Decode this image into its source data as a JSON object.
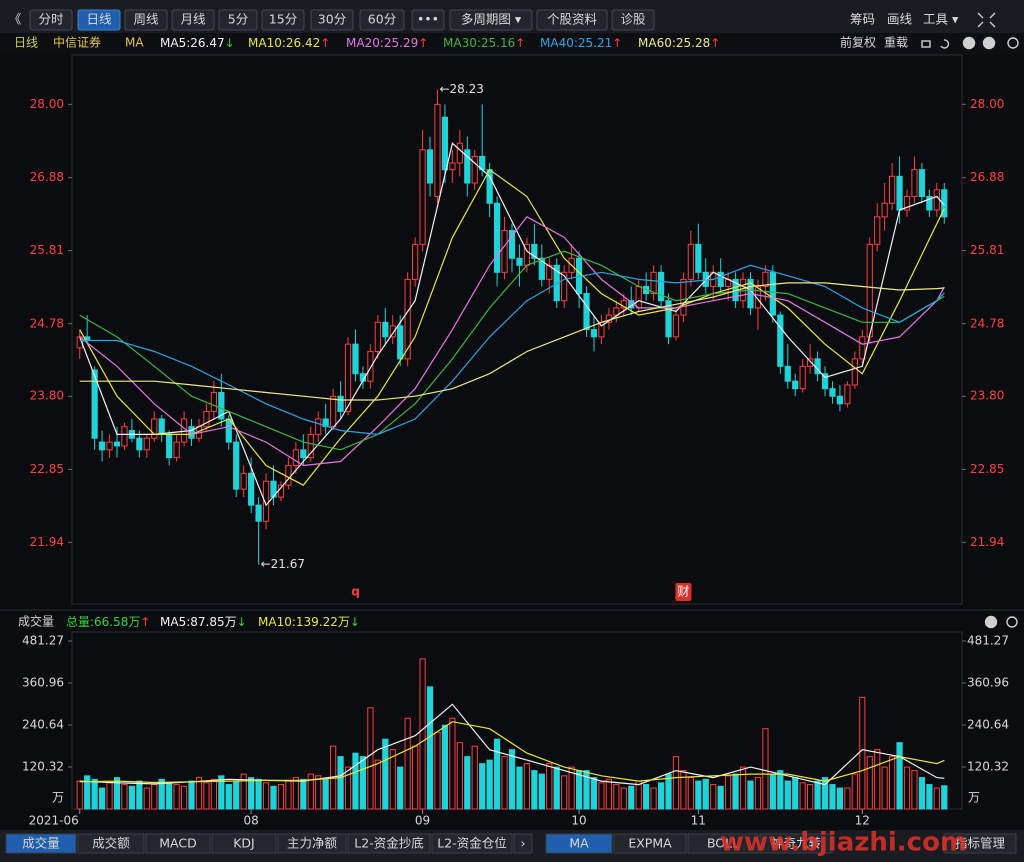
{
  "toolbar": {
    "left": [
      {
        "text": "《"
      },
      {
        "text": "分时"
      },
      {
        "text": "日线",
        "active": true
      },
      {
        "text": "周线"
      },
      {
        "text": "月线"
      },
      {
        "text": "5分"
      },
      {
        "text": "15分"
      },
      {
        "text": "30分"
      },
      {
        "text": "60分"
      },
      {
        "text": "•••"
      },
      {
        "text": "多周期图 ▾"
      },
      {
        "text": "个股资料"
      },
      {
        "text": "诊股"
      }
    ],
    "right": [
      "筹码",
      "画线",
      "工具 ▾"
    ]
  },
  "chart_header": {
    "period": "日线",
    "stock": "中信证券",
    "indicator": "MA",
    "right": [
      "前复权",
      "重载"
    ]
  },
  "chart_data": [
    {
      "type": "candlestick",
      "up_color": "#ff3d3d",
      "down_color": "#1ed4d8",
      "log_scale": true,
      "ylim": [
        21.2,
        28.78
      ],
      "yticks": [
        {
          "value": 28,
          "label": "28.00"
        },
        26.88,
        25.81,
        24.78,
        {
          "value": 23.8,
          "label": "23.80"
        },
        22.85,
        21.94
      ],
      "xticks": [
        {
          "value": 0,
          "label": "2021-06"
        },
        {
          "value": 23,
          "label": "08"
        },
        {
          "value": 46,
          "label": "09"
        },
        {
          "value": 67,
          "label": "10"
        },
        {
          "value": 83,
          "label": "11"
        },
        {
          "value": 105,
          "label": "12"
        }
      ],
      "ohlc": [
        [
          24.45,
          24.7,
          24.3,
          24.6
        ],
        [
          24.6,
          24.9,
          24.5,
          24.55
        ],
        [
          24.15,
          24.2,
          23.1,
          23.25
        ],
        [
          23.2,
          23.35,
          22.95,
          23.1
        ],
        [
          23.1,
          23.3,
          23.0,
          23.2
        ],
        [
          23.2,
          23.4,
          23.0,
          23.15
        ],
        [
          23.15,
          23.45,
          23.1,
          23.4
        ],
        [
          23.35,
          23.5,
          23.2,
          23.25
        ],
        [
          23.25,
          23.35,
          23.0,
          23.1
        ],
        [
          23.1,
          23.3,
          23.0,
          23.25
        ],
        [
          23.25,
          23.6,
          23.2,
          23.5
        ],
        [
          23.5,
          23.55,
          23.2,
          23.3
        ],
        [
          23.3,
          23.35,
          22.9,
          23.0
        ],
        [
          23.0,
          23.3,
          22.95,
          23.2
        ],
        [
          23.2,
          23.6,
          23.15,
          23.5
        ],
        [
          23.4,
          23.5,
          23.15,
          23.25
        ],
        [
          23.25,
          23.5,
          23.2,
          23.4
        ],
        [
          23.4,
          23.7,
          23.35,
          23.6
        ],
        [
          23.6,
          24.0,
          23.5,
          23.85
        ],
        [
          23.85,
          24.1,
          23.4,
          23.5
        ],
        [
          23.5,
          23.55,
          23.1,
          23.2
        ],
        [
          23.2,
          23.3,
          22.5,
          22.6
        ],
        [
          22.6,
          22.9,
          22.5,
          22.8
        ],
        [
          22.8,
          23.0,
          22.3,
          22.4
        ],
        [
          22.4,
          22.5,
          21.67,
          22.2
        ],
        [
          22.2,
          22.8,
          22.1,
          22.7
        ],
        [
          22.7,
          22.9,
          22.4,
          22.5
        ],
        [
          22.5,
          22.7,
          22.45,
          22.65
        ],
        [
          22.65,
          23.0,
          22.6,
          22.9
        ],
        [
          22.9,
          23.2,
          22.8,
          23.1
        ],
        [
          23.1,
          23.3,
          22.9,
          23.0
        ],
        [
          23.0,
          23.4,
          22.95,
          23.3
        ],
        [
          23.3,
          23.6,
          23.2,
          23.5
        ],
        [
          23.5,
          23.7,
          23.3,
          23.4
        ],
        [
          23.4,
          23.9,
          23.35,
          23.8
        ],
        [
          23.8,
          24.0,
          23.5,
          23.6
        ],
        [
          23.6,
          24.6,
          23.55,
          24.5
        ],
        [
          24.5,
          24.7,
          24.0,
          24.1
        ],
        [
          24.1,
          24.2,
          23.9,
          24.0
        ],
        [
          24.0,
          24.5,
          23.9,
          24.4
        ],
        [
          24.4,
          24.9,
          24.3,
          24.8
        ],
        [
          24.8,
          25.0,
          24.5,
          24.6
        ],
        [
          24.6,
          24.9,
          24.5,
          24.75
        ],
        [
          24.75,
          24.9,
          24.2,
          24.3
        ],
        [
          24.3,
          25.5,
          24.2,
          25.4
        ],
        [
          25.4,
          26.0,
          25.3,
          25.9
        ],
        [
          25.9,
          27.6,
          25.8,
          27.3
        ],
        [
          27.3,
          27.5,
          26.6,
          26.8
        ],
        [
          26.6,
          28.23,
          26.5,
          28.0
        ],
        [
          27.8,
          28.0,
          26.8,
          27.0
        ],
        [
          27.0,
          27.3,
          26.8,
          27.1
        ],
        [
          27.1,
          27.6,
          26.9,
          27.4
        ],
        [
          27.3,
          27.5,
          26.6,
          26.8
        ],
        [
          26.8,
          27.3,
          26.7,
          27.2
        ],
        [
          27.2,
          28.0,
          26.9,
          27.0
        ],
        [
          27.0,
          27.1,
          26.3,
          26.5
        ],
        [
          26.5,
          26.6,
          25.3,
          25.5
        ],
        [
          25.5,
          26.3,
          25.4,
          26.1
        ],
        [
          26.1,
          26.2,
          25.5,
          25.7
        ],
        [
          25.7,
          25.9,
          25.3,
          25.6
        ],
        [
          25.6,
          26.0,
          25.5,
          25.9
        ],
        [
          25.9,
          26.2,
          25.6,
          25.7
        ],
        [
          25.7,
          25.9,
          25.3,
          25.4
        ],
        [
          25.4,
          25.7,
          25.2,
          25.6
        ],
        [
          25.6,
          25.7,
          25.0,
          25.1
        ],
        [
          25.1,
          25.6,
          25.0,
          25.5
        ],
        [
          25.5,
          25.9,
          25.4,
          25.7
        ],
        [
          25.7,
          25.8,
          25.0,
          25.2
        ],
        [
          25.2,
          25.3,
          24.6,
          24.7
        ],
        [
          24.7,
          24.9,
          24.4,
          24.6
        ],
        [
          24.6,
          24.9,
          24.5,
          24.8
        ],
        [
          24.8,
          25.0,
          24.7,
          24.9
        ],
        [
          24.9,
          25.1,
          24.8,
          25.0
        ],
        [
          25.0,
          25.2,
          24.9,
          25.1
        ],
        [
          25.1,
          25.3,
          24.9,
          25.0
        ],
        [
          25.0,
          25.4,
          24.95,
          25.3
        ],
        [
          25.3,
          25.5,
          25.1,
          25.2
        ],
        [
          25.2,
          25.6,
          25.1,
          25.5
        ],
        [
          25.5,
          25.6,
          25.0,
          25.1
        ],
        [
          25.1,
          25.2,
          24.5,
          24.6
        ],
        [
          24.6,
          25.0,
          24.55,
          24.9
        ],
        [
          24.9,
          25.5,
          24.8,
          25.4
        ],
        [
          25.4,
          26.1,
          25.3,
          25.9
        ],
        [
          25.9,
          26.2,
          25.4,
          25.5
        ],
        [
          25.5,
          25.7,
          25.2,
          25.3
        ],
        [
          25.3,
          25.6,
          25.1,
          25.5
        ],
        [
          25.5,
          25.7,
          25.2,
          25.3
        ],
        [
          25.3,
          25.5,
          25.1,
          25.4
        ],
        [
          25.4,
          25.5,
          25.0,
          25.1
        ],
        [
          25.1,
          25.5,
          25.0,
          25.4
        ],
        [
          25.4,
          25.5,
          24.9,
          25.0
        ],
        [
          25.0,
          25.4,
          24.7,
          25.3
        ],
        [
          25.3,
          25.6,
          25.1,
          25.5
        ],
        [
          25.5,
          25.6,
          24.8,
          24.9
        ],
        [
          24.9,
          24.95,
          24.1,
          24.2
        ],
        [
          24.2,
          24.5,
          23.9,
          24.0
        ],
        [
          24.0,
          24.1,
          23.8,
          23.9
        ],
        [
          23.9,
          24.3,
          23.85,
          24.2
        ],
        [
          24.2,
          24.5,
          24.1,
          24.3
        ],
        [
          24.3,
          24.4,
          24.0,
          24.1
        ],
        [
          24.1,
          24.2,
          23.8,
          23.9
        ],
        [
          23.9,
          24.0,
          23.7,
          23.8
        ],
        [
          23.8,
          23.95,
          23.6,
          23.7
        ],
        [
          23.7,
          24.0,
          23.65,
          23.95
        ],
        [
          23.95,
          24.4,
          23.9,
          24.3
        ],
        [
          24.3,
          24.7,
          24.2,
          24.6
        ],
        [
          24.6,
          26.0,
          24.5,
          25.9
        ],
        [
          25.9,
          26.5,
          25.8,
          26.3
        ],
        [
          26.3,
          26.8,
          26.1,
          26.5
        ],
        [
          26.5,
          27.1,
          26.4,
          26.9
        ],
        [
          26.9,
          27.2,
          26.2,
          26.4
        ],
        [
          26.4,
          26.7,
          26.3,
          26.6
        ],
        [
          26.6,
          27.2,
          26.5,
          27.0
        ],
        [
          27.0,
          27.1,
          26.5,
          26.6
        ],
        [
          26.6,
          26.7,
          26.3,
          26.4
        ],
        [
          26.4,
          26.8,
          26.3,
          26.7
        ],
        [
          26.7,
          26.8,
          26.2,
          26.3
        ]
      ],
      "ma_x": [
        0,
        5,
        10,
        15,
        20,
        25,
        30,
        35,
        40,
        45,
        50,
        55,
        60,
        65,
        70,
        75,
        80,
        85,
        90,
        95,
        100,
        105,
        110,
        115,
        116
      ],
      "series": [
        {
          "name": "MA5:26.47",
          "trend": "↓",
          "trend_color": "#3ad43a",
          "color": "#f2f2f2",
          "values": [
            24.6,
            23.3,
            23.3,
            23.35,
            23.6,
            22.4,
            22.95,
            23.5,
            24.35,
            25.1,
            27.4,
            26.9,
            25.8,
            25.45,
            24.75,
            25.1,
            24.95,
            25.5,
            25.25,
            24.6,
            24.05,
            24.2,
            26.4,
            26.6,
            26.47
          ]
        },
        {
          "name": "MA10:26.42",
          "trend": "↑",
          "trend_color": "#ff3d3d",
          "color": "#e8e83a",
          "values": [
            24.7,
            23.8,
            23.3,
            23.3,
            23.5,
            22.9,
            22.65,
            23.25,
            23.8,
            24.6,
            26.0,
            27.0,
            26.6,
            25.7,
            25.2,
            24.9,
            25.0,
            25.2,
            25.35,
            25.0,
            24.5,
            24.1,
            25.1,
            26.2,
            26.42
          ]
        },
        {
          "name": "MA20:25.29",
          "trend": "↑",
          "trend_color": "#ff3d3d",
          "color": "#e377e3",
          "values": [
            24.6,
            24.2,
            23.7,
            23.3,
            23.4,
            23.2,
            22.9,
            22.95,
            23.4,
            23.9,
            24.7,
            25.6,
            26.3,
            26.0,
            25.4,
            25.0,
            25.0,
            25.1,
            25.2,
            25.1,
            24.8,
            24.5,
            24.6,
            25.1,
            25.29
          ]
        },
        {
          "name": "MA30:25.16",
          "trend": "↑",
          "trend_color": "#ff3d3d",
          "color": "#3fb53f",
          "values": [
            24.9,
            24.6,
            24.2,
            23.8,
            23.6,
            23.4,
            23.2,
            23.1,
            23.3,
            23.7,
            24.3,
            25.0,
            25.6,
            25.8,
            25.6,
            25.3,
            25.1,
            25.2,
            25.25,
            25.2,
            25.0,
            24.8,
            24.8,
            25.1,
            25.16
          ]
        },
        {
          "name": "MA40:25.21",
          "trend": "↑",
          "trend_color": "#ff3d3d",
          "color": "#2aa6e6",
          "values": [
            24.55,
            24.55,
            24.4,
            24.2,
            23.95,
            23.7,
            23.5,
            23.35,
            23.3,
            23.5,
            24.0,
            24.6,
            25.1,
            25.4,
            25.5,
            25.4,
            25.35,
            25.4,
            25.6,
            25.45,
            25.3,
            25.0,
            24.8,
            25.1,
            25.21
          ]
        },
        {
          "name": "MA60:25.28",
          "trend": "↑",
          "trend_color": "#ff3d3d",
          "color": "#eaea8a",
          "values": [
            24.0,
            24.0,
            24.0,
            23.95,
            23.9,
            23.85,
            23.8,
            23.75,
            23.75,
            23.8,
            23.9,
            24.1,
            24.4,
            24.6,
            24.8,
            24.95,
            25.05,
            25.15,
            25.3,
            25.35,
            25.35,
            25.3,
            25.25,
            25.27,
            25.28
          ]
        }
      ],
      "annotations": [
        {
          "text": "←28.23",
          "index": 48,
          "value": 28.23
        },
        {
          "text": "←21.67",
          "index": 24,
          "value": 21.67
        }
      ],
      "markers": [
        {
          "text": "q",
          "index": 37
        },
        {
          "text": "财",
          "index": 81
        }
      ]
    },
    {
      "type": "volume_bar",
      "title": "成交量",
      "total": "总量:66.58万",
      "total_trend": "↑",
      "total_trend_color": "#ff3d3d",
      "ylim": [
        0,
        481.27
      ],
      "yticks": [
        120.32,
        240.64,
        360.96,
        481.27
      ],
      "unit": "万",
      "values": [
        80,
        95,
        85,
        60,
        75,
        90,
        70,
        65,
        80,
        60,
        70,
        85,
        75,
        70,
        65,
        80,
        90,
        75,
        85,
        95,
        70,
        80,
        100,
        90,
        85,
        75,
        65,
        70,
        80,
        90,
        85,
        100,
        95,
        85,
        180,
        150,
        120,
        160,
        150,
        290,
        140,
        200,
        170,
        120,
        260,
        180,
        430,
        350,
        220,
        240,
        260,
        190,
        150,
        180,
        130,
        140,
        200,
        150,
        170,
        120,
        130,
        110,
        100,
        130,
        120,
        95,
        120,
        110,
        110,
        90,
        75,
        85,
        70,
        60,
        65,
        80,
        70,
        60,
        75,
        100,
        150,
        110,
        90,
        80,
        85,
        70,
        65,
        95,
        100,
        120,
        80,
        90,
        230,
        100,
        110,
        80,
        90,
        75,
        70,
        80,
        90,
        70,
        60,
        60,
        100,
        320,
        150,
        170,
        120,
        150,
        190,
        120,
        110,
        90,
        70,
        60,
        66.58
      ],
      "series": [
        {
          "name": "MA5:87.85万",
          "trend": "↓",
          "trend_color": "#3ad43a",
          "color": "#f2f2f2",
          "values": [
            80,
            75,
            72,
            78,
            85,
            82,
            80,
            95,
            170,
            210,
            300,
            170,
            140,
            110,
            80,
            70,
            110,
            90,
            120,
            95,
            70,
            170,
            150,
            90,
            87.85
          ]
        },
        {
          "name": "MA10:139.22万",
          "trend": "↓",
          "trend_color": "#3ad43a",
          "color": "#e8e83a",
          "values": [
            78,
            80,
            76,
            78,
            80,
            82,
            82,
            90,
            130,
            180,
            250,
            230,
            160,
            120,
            95,
            80,
            90,
            95,
            100,
            100,
            80,
            110,
            150,
            130,
            139.22
          ]
        }
      ]
    }
  ],
  "indicator_tabs": [
    {
      "text": "成交量",
      "active": true
    },
    {
      "text": "成交额"
    },
    {
      "text": "MACD"
    },
    {
      "text": "KDJ"
    },
    {
      "text": "主力净额"
    },
    {
      "text": "L2-资金抄底"
    },
    {
      "text": "L2-资金仓位"
    },
    {
      "text": "›"
    }
  ],
  "overlay_tabs": [
    {
      "text": "MA",
      "active": true
    },
    {
      "text": "EXPMA"
    },
    {
      "text": "BOLL"
    },
    {
      "text": "神奇九转"
    }
  ],
  "manage": "指标管理",
  "watermark": "www.bjiazhi.com"
}
